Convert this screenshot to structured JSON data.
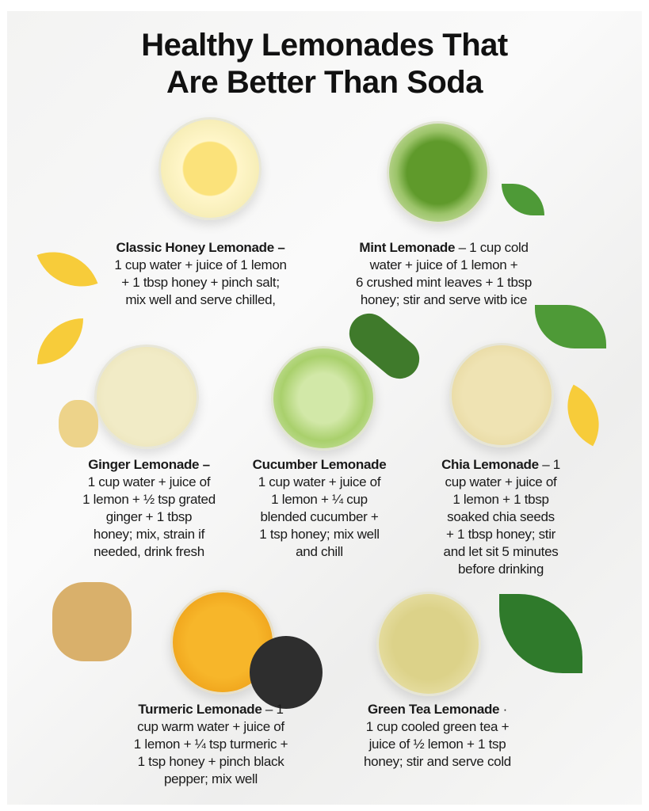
{
  "title": {
    "line1": "Healthy Lemonades That",
    "line2": "Are Better Than Soda"
  },
  "recipes": [
    {
      "name": "Classic Honey Lemonade –",
      "first_rest": "",
      "lines": [
        "1 cup water + juice of 1 lemon",
        "+ 1 tbsp honey + pinch salt;",
        "mix well and serve chilled,"
      ],
      "color": "#f6e79a"
    },
    {
      "name": "Mint Lemonade",
      "first_rest": " – 1 cup cold",
      "lines": [
        "water + juice of 1 lemon +",
        "6 crushed mint leaves + 1 tbsp",
        "honey; stir and serve witb ice"
      ],
      "color": "#7fae3c"
    },
    {
      "name": "Ginger Lemonade –",
      "first_rest": "",
      "lines": [
        "1 cup water + juice of",
        "1 lemon + ½ tsp grated",
        "ginger + 1 tbsp",
        "honey; mix, strain if",
        "needed, drink fresh"
      ],
      "color": "#efe6b8"
    },
    {
      "name": "Cucumber Lemonade",
      "first_rest": "",
      "lines": [
        "1 cup water + juice of",
        "1 lemon + ¼ cup",
        "blended cucumber +",
        "1 tsp honey; mix well",
        "and chill"
      ],
      "color": "#b9d98a"
    },
    {
      "name": "Chia Lemonade",
      "first_rest": " – 1",
      "lines": [
        "cup water + juice of",
        "1 lemon + 1 tbsp",
        "soaked chia seeds",
        "+ 1 tbsp honey; stir",
        "and let sit 5 minutes",
        "before drinking"
      ],
      "color": "#e9dca6"
    },
    {
      "name": "Turmeric Lemonade",
      "first_rest": " – 1",
      "lines": [
        "cup warm water + juice of",
        "1 lemon + ¼ tsp turmeric +",
        "1 tsp honey + pinch black",
        "pepper; mix well"
      ],
      "color": "#f2a51c"
    },
    {
      "name": "Green Tea Lemonade",
      "first_rest": " ·",
      "lines": [
        "1 cup cooled green tea +",
        "juice of ½ lemon + 1 tsp",
        "honey; stir and serve cold"
      ],
      "color": "#e6df9e"
    }
  ]
}
